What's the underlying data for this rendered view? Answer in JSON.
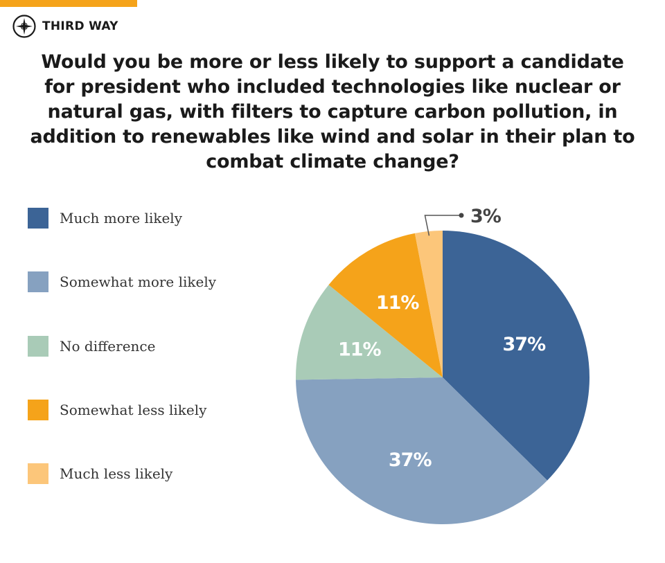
{
  "brand": {
    "name": "THIRD WAY",
    "accent": "#f5a31a"
  },
  "chart_data": {
    "type": "pie",
    "title": "Would you be more or less likely to support a candidate for president who included technologies like nuclear or natural gas, with filters to capture carbon pollution, in addition to renewables like wind and solar in their plan to combat climate change?",
    "legend_position": "left",
    "slices": [
      {
        "label": "Much more likely",
        "value": 37,
        "display": "37%",
        "color": "#3c6496"
      },
      {
        "label": "Somewhat more likely",
        "value": 37,
        "display": "37%",
        "color": "#86a1c0"
      },
      {
        "label": "No difference",
        "value": 11,
        "display": "11%",
        "color": "#a9cbb7"
      },
      {
        "label": "Somewhat less likely",
        "value": 11,
        "display": "11%",
        "color": "#f5a31a"
      },
      {
        "label": "Much less likely",
        "value": 3,
        "display": "3%",
        "color": "#fcc67a"
      }
    ]
  }
}
